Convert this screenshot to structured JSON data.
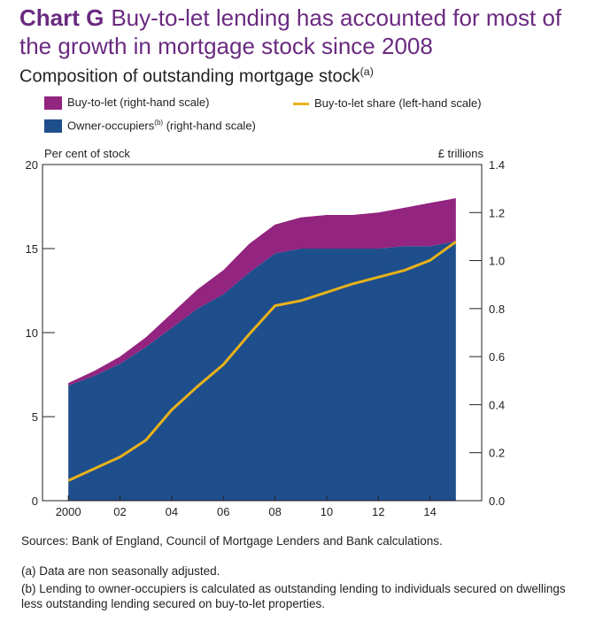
{
  "header": {
    "chart_label": "Chart G",
    "title": "Buy-to-let lending has accounted for most of the growth in mortgage stock since 2008",
    "subtitle": "Composition of outstanding mortgage stock",
    "subtitle_note": "(a)"
  },
  "legend": {
    "btl": "Buy-to-let (right-hand scale)",
    "oo": "Owner-occupiers",
    "oo_note": "(b)",
    "oo_suffix": " (right-hand scale)",
    "share": "Buy-to-let share (left-hand scale)"
  },
  "colors": {
    "btl": "#93247f",
    "oo": "#1f4e8c",
    "share": "#e8b21a"
  },
  "footer": {
    "sources": "Sources: Bank of England, Council of Mortgage Lenders and Bank calculations.",
    "note_a": "(a) Data are non seasonally adjusted.",
    "note_b": "(b) Lending to owner-occupiers is calculated as outstanding lending to individuals secured on dwellings less outstanding lending secured on buy-to-let properties."
  },
  "chart_data": {
    "type": "area",
    "left_axis": {
      "label": "Per cent of stock",
      "range": [
        0,
        20
      ],
      "ticks": [
        0,
        5,
        10,
        15,
        20
      ]
    },
    "right_axis": {
      "label": "£ trillions",
      "range": [
        0,
        1.4
      ],
      "ticks": [
        "0.0",
        "0.2",
        "0.4",
        "0.6",
        "0.8",
        "1.0",
        "1.2",
        "1.4"
      ]
    },
    "x_tick_labels": [
      "2000",
      "02",
      "04",
      "06",
      "08",
      "10",
      "12",
      "14"
    ],
    "x_tick_years": [
      2000,
      2002,
      2004,
      2006,
      2008,
      2010,
      2012,
      2014
    ],
    "x_range": [
      1999,
      2016
    ],
    "x": [
      2000,
      2001,
      2002,
      2003,
      2004,
      2005,
      2006,
      2007,
      2008,
      2009,
      2010,
      2011,
      2012,
      2013,
      2014,
      2015
    ],
    "series": [
      {
        "name": "Owner-occupiers",
        "axis": "right",
        "kind": "area",
        "values": [
          0.48,
          0.52,
          0.57,
          0.64,
          0.72,
          0.8,
          0.86,
          0.95,
          1.03,
          1.05,
          1.05,
          1.05,
          1.05,
          1.06,
          1.06,
          1.08
        ]
      },
      {
        "name": "Buy-to-let",
        "axis": "right",
        "kind": "area-stacked",
        "values": [
          0.01,
          0.02,
          0.03,
          0.04,
          0.06,
          0.08,
          0.1,
          0.12,
          0.12,
          0.13,
          0.14,
          0.14,
          0.15,
          0.16,
          0.18,
          0.18
        ]
      },
      {
        "name": "Buy-to-let share",
        "axis": "left",
        "kind": "line",
        "values": [
          1.2,
          1.9,
          2.6,
          3.6,
          5.4,
          6.8,
          8.1,
          9.9,
          11.6,
          11.9,
          12.4,
          12.9,
          13.3,
          13.7,
          14.3,
          15.4
        ]
      }
    ]
  }
}
